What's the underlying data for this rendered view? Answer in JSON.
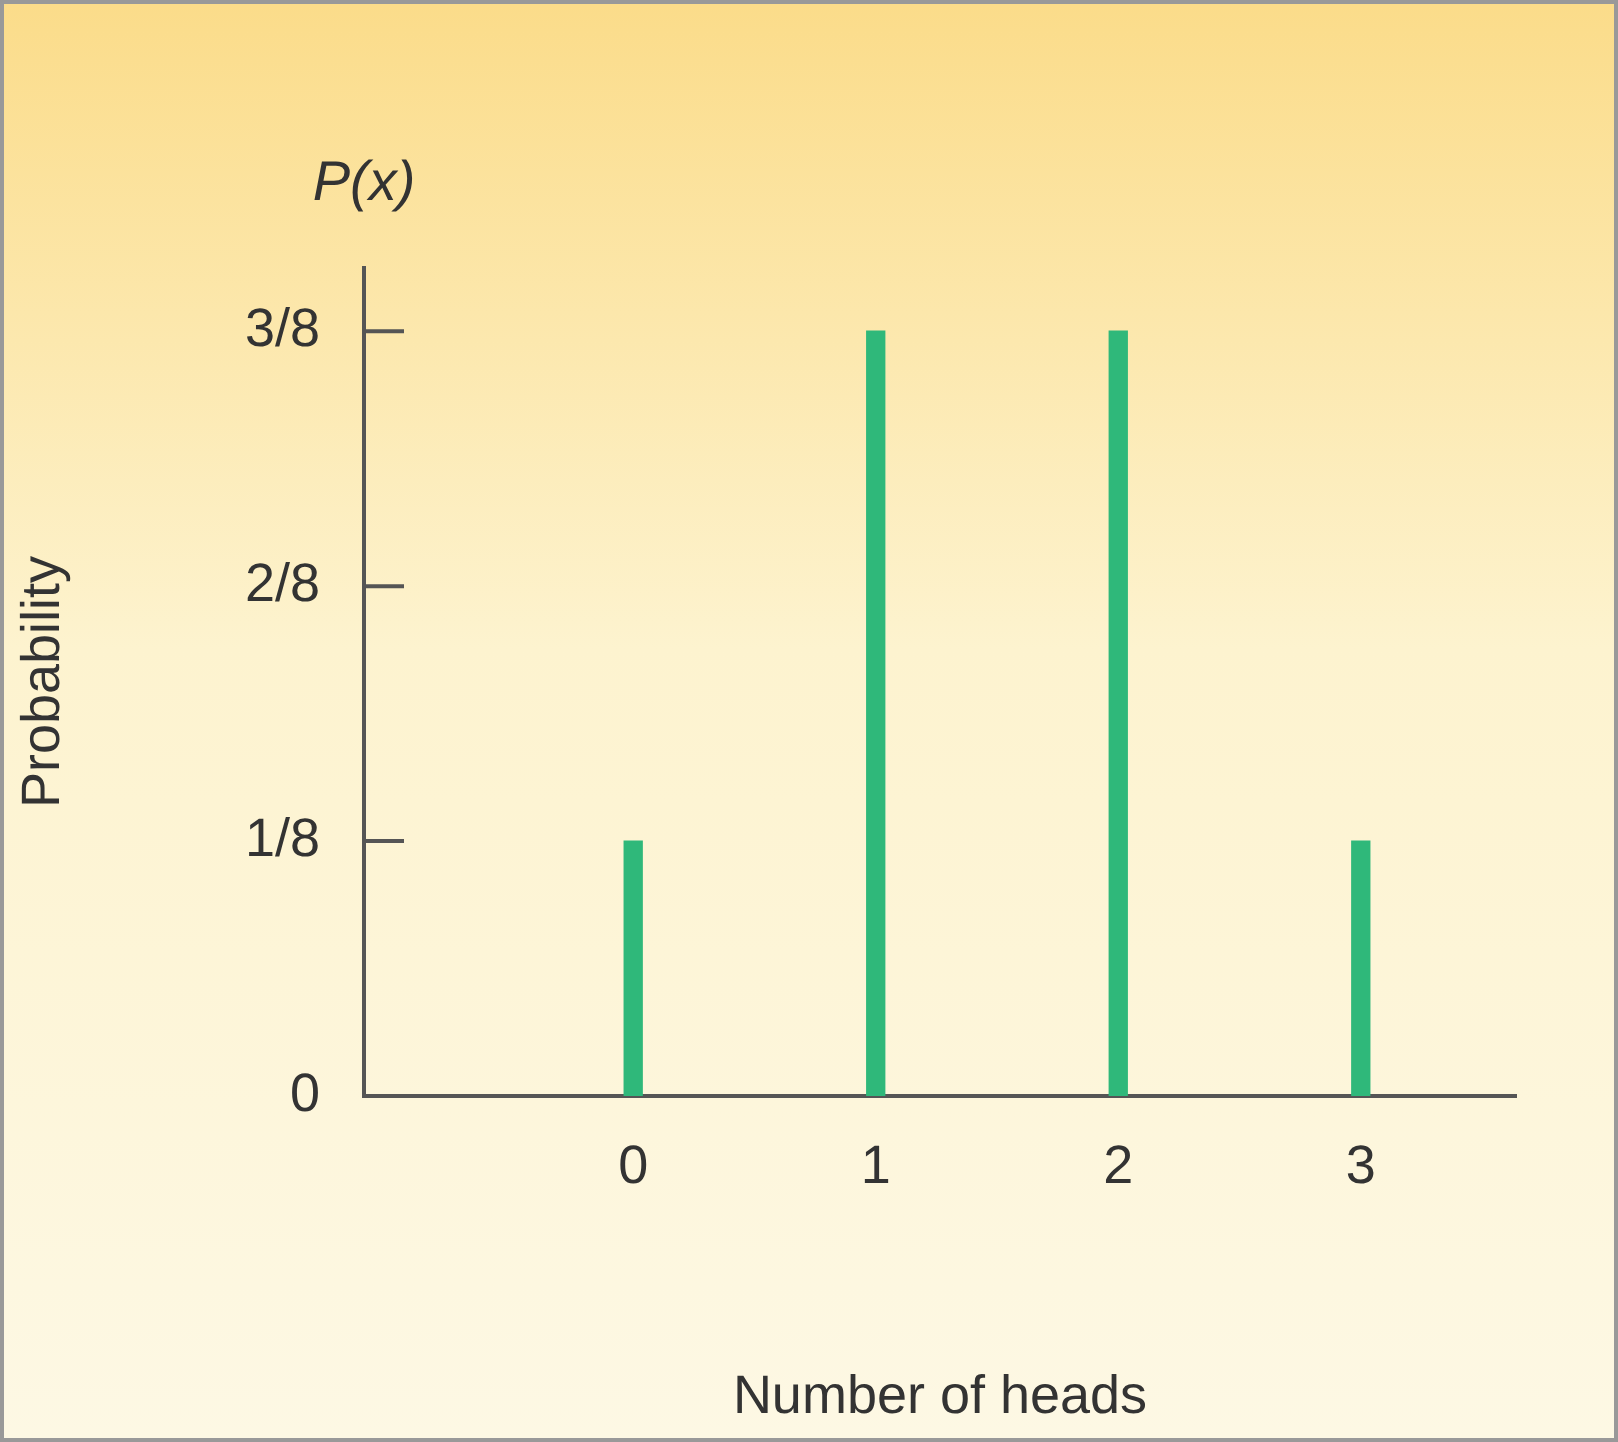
{
  "chart_data": {
    "type": "bar",
    "xlabel": "Number of heads",
    "ylabel": "Probability",
    "annotations": [
      "P(x)"
    ],
    "x": [
      0,
      1,
      2,
      3
    ],
    "values": [
      0.125,
      0.375,
      0.375,
      0.125
    ],
    "color": "#2fb87a",
    "xlim": [
      -1.11,
      3.64
    ],
    "xticks": [
      0,
      1,
      2,
      3
    ],
    "ylim": [
      0,
      0.406
    ],
    "yticks": [
      0,
      {
        "value": 0.125,
        "label": "1/8"
      },
      {
        "value": 0.25,
        "label": "2/8"
      },
      {
        "value": 0.375,
        "label": "3/8"
      }
    ],
    "grid": false,
    "legend": false
  }
}
